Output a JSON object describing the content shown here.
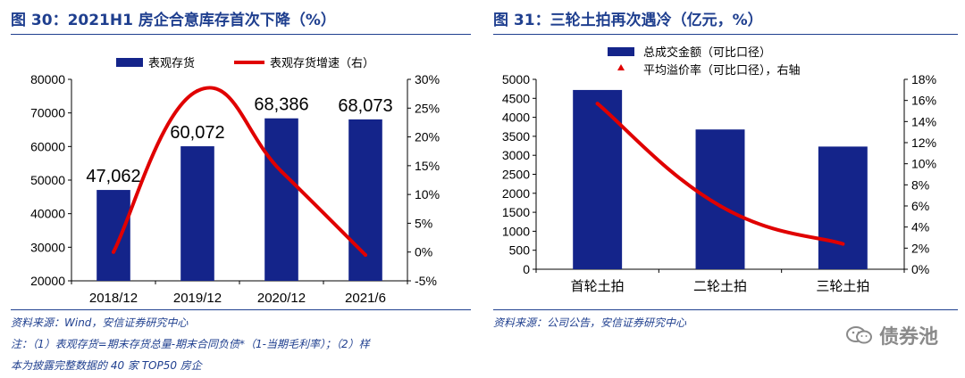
{
  "colors": {
    "bar": "#14248a",
    "line": "#e00000",
    "title": "#1f3f8f"
  },
  "watermark": {
    "text": "债券池",
    "icon": "wechat-icon"
  },
  "left": {
    "title": "图 30：2021H1 房企合意库存首次下降（%）",
    "source": "资料来源：Wind，安信证券研究中心",
    "note1": "注：（1）表观存货=期末存货总量-期末合同负债*（1-当期毛利率）；（2）样",
    "note2": "本为披露完整数据的 40 家 TOP50 房企"
  },
  "right": {
    "title": "图 31：三轮土拍再次遇冷（亿元，%）",
    "source": "资料来源：公司公告，安信证券研究中心"
  },
  "chart_data": [
    {
      "type": "bar",
      "categories": [
        "2018/12",
        "2019/12",
        "2020/12",
        "2021/6"
      ],
      "series": [
        {
          "name": "表观存货",
          "type": "bar",
          "axis": "left",
          "values": [
            47062,
            60072,
            68386,
            68073
          ]
        },
        {
          "name": "表观存货增速（右）",
          "type": "line",
          "axis": "right",
          "values": [
            0.0,
            28.0,
            14.0,
            -0.5
          ]
        }
      ],
      "value_labels": [
        "47,062",
        "60,072",
        "68,386",
        "68,073"
      ],
      "ylim": [
        20000,
        80000
      ],
      "yticks": [
        20000,
        30000,
        40000,
        50000,
        60000,
        70000,
        80000
      ],
      "y2lim": [
        -5,
        30
      ],
      "y2ticks": [
        "-5%",
        "0%",
        "5%",
        "10%",
        "15%",
        "20%",
        "25%",
        "30%"
      ],
      "legend": [
        "表观存货",
        "表观存货增速（右）"
      ]
    },
    {
      "type": "bar",
      "categories": [
        "首轮土拍",
        "二轮土拍",
        "三轮土拍"
      ],
      "series": [
        {
          "name": "总成交金额（可比口径）",
          "type": "bar",
          "axis": "left",
          "values": [
            4720,
            3680,
            3230
          ]
        },
        {
          "name": "平均溢价率（可比口径），右轴",
          "type": "line",
          "axis": "right",
          "values": [
            15.7,
            6.0,
            2.4
          ]
        }
      ],
      "ylim": [
        0,
        5000
      ],
      "yticks": [
        0,
        500,
        1000,
        1500,
        2000,
        2500,
        3000,
        3500,
        4000,
        4500,
        5000
      ],
      "y2lim": [
        0,
        18
      ],
      "y2ticks": [
        "0%",
        "2%",
        "4%",
        "6%",
        "8%",
        "10%",
        "12%",
        "14%",
        "16%",
        "18%"
      ],
      "legend": [
        "总成交金额（可比口径）",
        "平均溢价率（可比口径），右轴"
      ]
    }
  ]
}
